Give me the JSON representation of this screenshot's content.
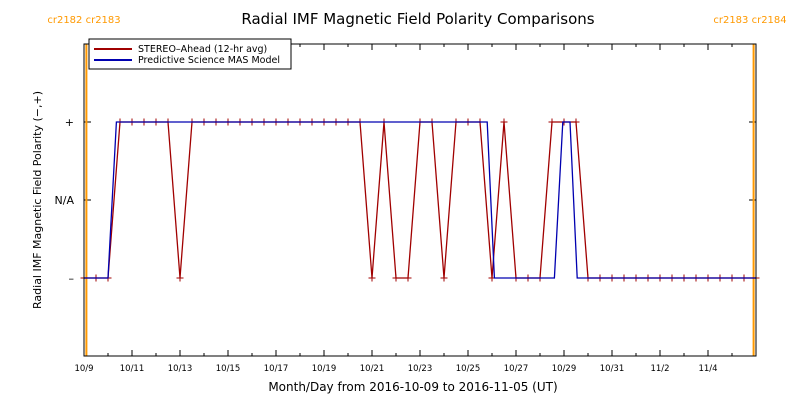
{
  "chart_data": {
    "type": "line",
    "title": "Radial IMF Magnetic Field Polarity Comparisons",
    "xlabel": "Month/Day from 2016-10-09 to 2016-11-05 (UT)",
    "ylabel": "Radial IMF Magnetic Field Polarity (−,+)",
    "xlim": [
      0,
      28
    ],
    "ylim": [
      -2,
      2
    ],
    "x_ticks": [
      {
        "x": 0,
        "label": "10/9"
      },
      {
        "x": 2,
        "label": "10/11"
      },
      {
        "x": 4,
        "label": "10/13"
      },
      {
        "x": 6,
        "label": "10/15"
      },
      {
        "x": 8,
        "label": "10/17"
      },
      {
        "x": 10,
        "label": "10/19"
      },
      {
        "x": 12,
        "label": "10/21"
      },
      {
        "x": 14,
        "label": "10/23"
      },
      {
        "x": 16,
        "label": "10/25"
      },
      {
        "x": 18,
        "label": "10/27"
      },
      {
        "x": 20,
        "label": "10/29"
      },
      {
        "x": 22,
        "label": "10/31"
      },
      {
        "x": 24,
        "label": "11/2"
      },
      {
        "x": 26,
        "label": "11/4"
      }
    ],
    "y_ticks": [
      {
        "y": 1,
        "label": "+"
      },
      {
        "y": 0,
        "label": "N/A"
      },
      {
        "y": -1,
        "label": "–"
      }
    ],
    "carrington_markers": [
      {
        "x": 0.1,
        "label": "cr2182 cr2183"
      },
      {
        "x": 27.9,
        "label": "cr2183 cr2184"
      }
    ],
    "legend_position": "top-left",
    "series": [
      {
        "name": "STEREO–Ahead (12-hr avg)",
        "color": "#a00000",
        "markers": true,
        "x": [
          0,
          0.5,
          1,
          1.5,
          2,
          2.5,
          3,
          3.5,
          4,
          4.5,
          5,
          5.5,
          6,
          6.5,
          7,
          7.5,
          8,
          8.5,
          9,
          9.5,
          10,
          10.5,
          11,
          11.5,
          12,
          12.5,
          13,
          13.5,
          14,
          14.5,
          15,
          15.5,
          16,
          16.5,
          17,
          17.5,
          18,
          18.5,
          19,
          19.5,
          20,
          20.5,
          21,
          21.5,
          22,
          22.5,
          23,
          23.5,
          24,
          24.5,
          25,
          25.5,
          26,
          26.5,
          27,
          27.5,
          28
        ],
        "values": [
          -1,
          -1,
          -1,
          1,
          1,
          1,
          1,
          1,
          -1,
          1,
          1,
          1,
          1,
          1,
          1,
          1,
          1,
          1,
          1,
          1,
          1,
          1,
          1,
          1,
          -1,
          1,
          -1,
          -1,
          1,
          1,
          -1,
          1,
          1,
          1,
          -1,
          1,
          -1,
          -1,
          -1,
          1,
          1,
          1,
          -1,
          -1,
          -1,
          -1,
          -1,
          -1,
          -1,
          -1,
          -1,
          -1,
          -1,
          -1,
          -1,
          -1,
          -1
        ]
      },
      {
        "name": "Predictive Science MAS Model",
        "color": "#0000b0",
        "markers": false,
        "x": [
          0,
          1.0,
          1.35,
          16.8,
          17.1,
          19.6,
          19.95,
          20.25,
          20.55,
          28
        ],
        "values": [
          -1,
          -1,
          1,
          1,
          -1,
          -1,
          1,
          1,
          -1,
          -1
        ]
      }
    ]
  }
}
